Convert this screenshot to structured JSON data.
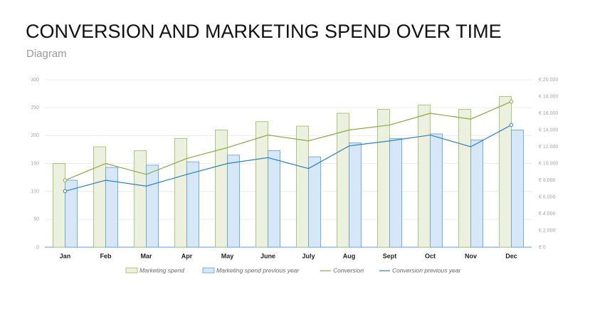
{
  "chart_data": {
    "type": "bar-line",
    "title": "CONVERSION AND MARKETING SPEND OVER TIME",
    "subtitle": "Diagram",
    "categories": [
      "Jan",
      "Feb",
      "Mar",
      "Apr",
      "May",
      "June",
      "July",
      "Aug",
      "Sept",
      "Oct",
      "Nov",
      "Dec"
    ],
    "series": [
      {
        "name": "Marketing spend",
        "kind": "bar",
        "color": "#9bbb59",
        "fill": "#ebf1de",
        "values": [
          150,
          180,
          173,
          195,
          210,
          225,
          217,
          240,
          247,
          255,
          247,
          270
        ]
      },
      {
        "name": "Marketing spend previous year",
        "kind": "bar",
        "color": "#5b9bd5",
        "fill": "#d6e8f7",
        "values": [
          120,
          143,
          147,
          153,
          165,
          173,
          162,
          187,
          195,
          203,
          192,
          210
        ]
      },
      {
        "name": "Conversion",
        "kind": "line",
        "axis": "y2",
        "color": "#8aa83f",
        "values": [
          8000,
          10000,
          8700,
          10600,
          11900,
          13400,
          12700,
          14000,
          14600,
          16000,
          15300,
          17400
        ]
      },
      {
        "name": "Conversion previous year",
        "kind": "line",
        "axis": "y2",
        "color": "#2e80c0",
        "values": [
          6700,
          8000,
          7300,
          8700,
          10000,
          10700,
          9400,
          12100,
          12700,
          13400,
          12000,
          14600
        ]
      }
    ],
    "ylim": [
      0,
      300
    ],
    "yticks": [
      0,
      50,
      100,
      150,
      200,
      250,
      300
    ],
    "y2lim": [
      0,
      20000
    ],
    "y2ticks": [
      {
        "value": 0,
        "label": "€ 0"
      },
      {
        "value": 2000,
        "label": "€ 2.000"
      },
      {
        "value": 4000,
        "label": "€ 4.000"
      },
      {
        "value": 6000,
        "label": "€ 6.000"
      },
      {
        "value": 8000,
        "label": "€ 8.000"
      },
      {
        "value": 10000,
        "label": "€ 10.000"
      },
      {
        "value": 12000,
        "label": "€ 12.000"
      },
      {
        "value": 14000,
        "label": "€ 14.000"
      },
      {
        "value": 16000,
        "label": "€ 16.000"
      },
      {
        "value": 18000,
        "label": "€ 18.000"
      },
      {
        "value": 20000,
        "label": "€ 20.000"
      }
    ],
    "grid": true,
    "legend": "bottom"
  }
}
